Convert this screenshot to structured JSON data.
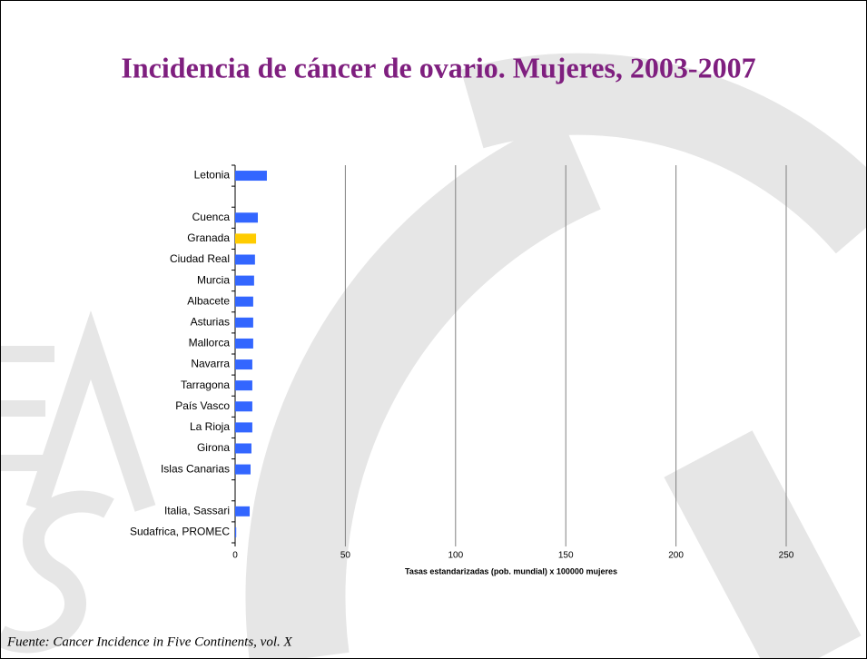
{
  "chart_data": {
    "type": "bar",
    "orientation": "horizontal",
    "title": "Incidencia de cáncer de ovario. Mujeres, 2003-2007",
    "x_label": "Tasas estandarizadas (pob. mundial) x 100000 mujeres",
    "source": "Fuente: Cancer Incidence in Five Continents, vol. X",
    "categories": [
      "Letonia",
      null,
      "Cuenca",
      "Granada",
      "Ciudad Real",
      "Murcia",
      "Albacete",
      "Asturias",
      "Mallorca",
      "Navarra",
      "Tarragona",
      "País Vasco",
      "La Rioja",
      "Girona",
      "Islas Canarias",
      null,
      "Italia, Sassari",
      "Sudafrica, PROMEC"
    ],
    "values": [
      14.4,
      null,
      10.3,
      9.5,
      9.0,
      8.6,
      8.2,
      8.2,
      8.2,
      7.8,
      7.8,
      7.8,
      7.8,
      7.4,
      7.0,
      null,
      6.6,
      0.5
    ],
    "colors": [
      "#3366ff",
      null,
      "#3366ff",
      "#ffcc00",
      "#3366ff",
      "#3366ff",
      "#3366ff",
      "#3366ff",
      "#3366ff",
      "#3366ff",
      "#3366ff",
      "#3366ff",
      "#3366ff",
      "#3366ff",
      "#3366ff",
      null,
      "#3366ff",
      "#3366ff"
    ],
    "xlim": [
      0,
      250
    ],
    "xticks": [
      0,
      50,
      100,
      150,
      200,
      250
    ],
    "grid": true
  }
}
